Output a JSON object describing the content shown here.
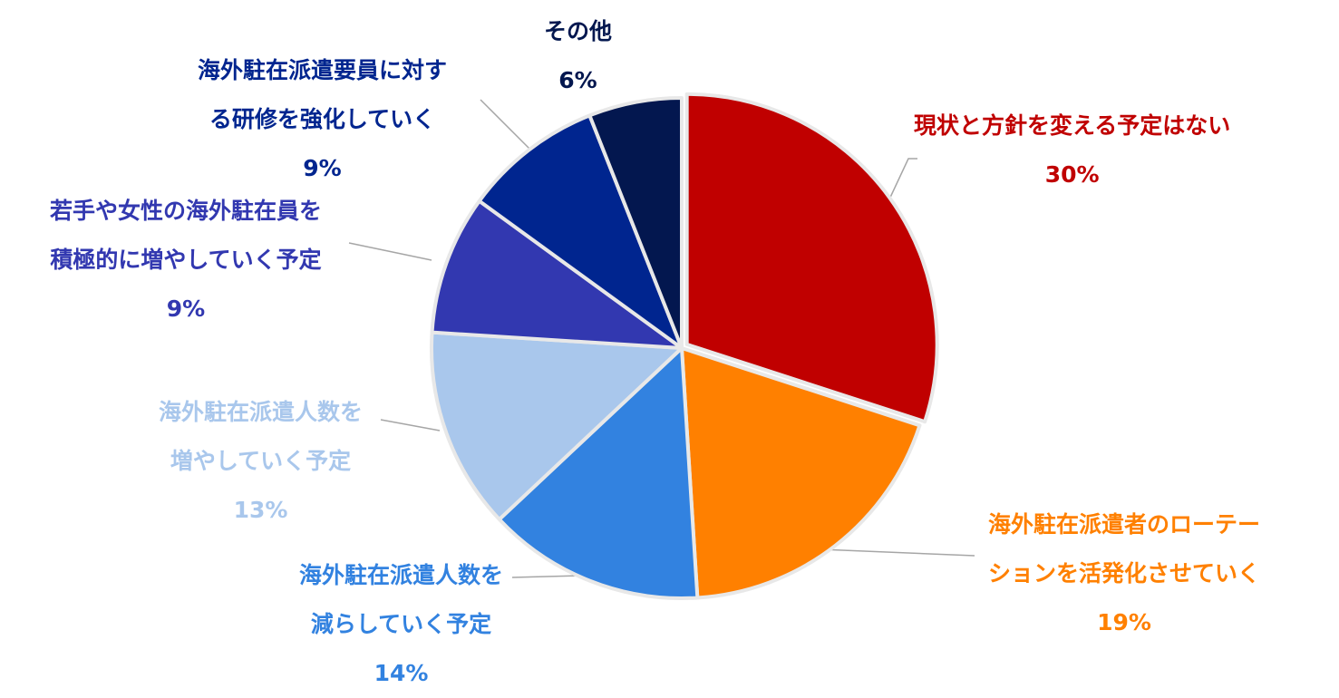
{
  "chart_data": {
    "type": "pie",
    "slices": [
      {
        "lines": [
          "現状と方針を変える予定はない"
        ],
        "pct_text": "30%",
        "value": 30,
        "color": "#C00000"
      },
      {
        "lines": [
          "海外駐在派遣者のローテー",
          "ションを活発化させていく"
        ],
        "pct_text": "19%",
        "value": 19,
        "color": "#FF8000"
      },
      {
        "lines": [
          "海外駐在派遣人数を",
          "減らしていく予定"
        ],
        "pct_text": "14%",
        "value": 14,
        "color": "#3282E0"
      },
      {
        "lines": [
          "海外駐在派遣人数を",
          "増やしていく予定"
        ],
        "pct_text": "13%",
        "value": 13,
        "color": "#A9C7EC"
      },
      {
        "lines": [
          "若手や女性の海外駐在員を",
          "積極的に増やしていく予定"
        ],
        "pct_text": "9%",
        "value": 9,
        "color": "#3238B0"
      },
      {
        "lines": [
          "海外駐在派遣要員に対す",
          "る研修を強化していく"
        ],
        "pct_text": "9%",
        "value": 9,
        "color": "#00258F"
      },
      {
        "lines": [
          "その他"
        ],
        "pct_text": "6%",
        "value": 6,
        "color": "#03174F"
      }
    ]
  }
}
